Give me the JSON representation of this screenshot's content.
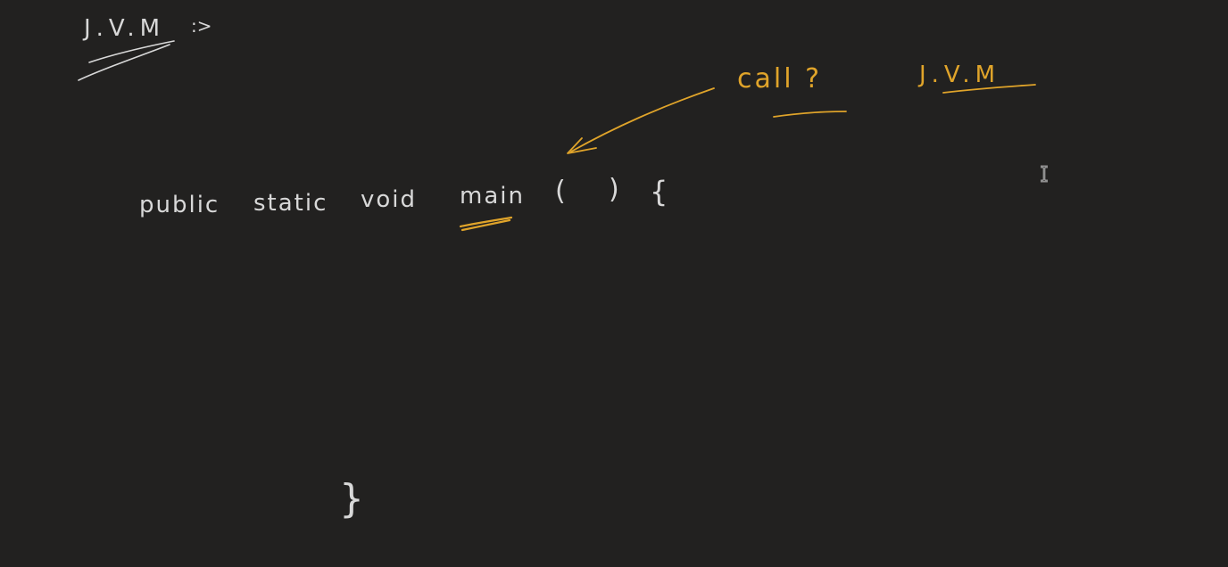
{
  "canvas": {
    "background": "#222120",
    "ink_white": "#d8d8d8",
    "ink_gold": "#e0a42a"
  },
  "notes": {
    "jvm_label": "J.V.M",
    "jvm_arrow": ":>",
    "call_label": "call ?",
    "jvm_gold_label": "J.V.M",
    "code_public": "public",
    "code_static": "static",
    "code_void": "void",
    "code_main": "main",
    "code_paren_open": "(",
    "code_paren_close": ")",
    "code_brace_open": "{",
    "code_brace_close": "}"
  },
  "cursor": {
    "icon": "text-cursor-icon"
  }
}
